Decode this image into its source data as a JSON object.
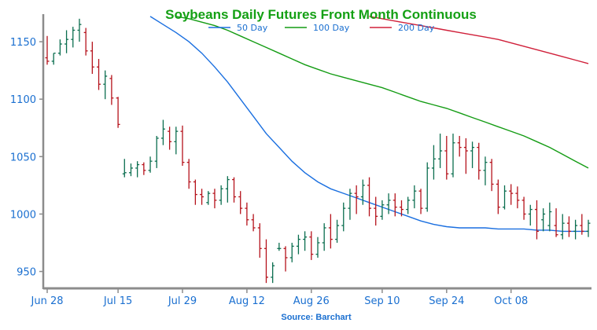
{
  "chart_data": {
    "type": "ohlc",
    "title": "Soybeans Daily Futures Front Month Continuous",
    "source": "Source: Barchart",
    "y_ticks": [
      950,
      1000,
      1050,
      1100,
      1150
    ],
    "ylim": [
      936,
      1174
    ],
    "x_tick_labels": [
      "Jun 28",
      "Jul 15",
      "Jul 29",
      "Aug 12",
      "Aug 26",
      "Sep 10",
      "Sep 24",
      "Oct 08"
    ],
    "x_tick_index": [
      0,
      11,
      21,
      31,
      41,
      52,
      62,
      72
    ],
    "x_count": 85,
    "up_color": "#0b6e4f",
    "down_color": "#b5121b",
    "bars": [
      [
        1136,
        1155,
        1130,
        1133
      ],
      [
        1133,
        1140,
        1130,
        1140
      ],
      [
        1140,
        1152,
        1138,
        1148
      ],
      [
        1148,
        1160,
        1140,
        1152
      ],
      [
        1152,
        1163,
        1145,
        1160
      ],
      [
        1160,
        1170,
        1150,
        1165
      ],
      [
        1158,
        1162,
        1138,
        1142
      ],
      [
        1142,
        1150,
        1122,
        1128
      ],
      [
        1128,
        1135,
        1108,
        1113
      ],
      [
        1113,
        1125,
        1100,
        1120
      ],
      [
        1118,
        1121,
        1095,
        1101
      ],
      [
        1101,
        1102,
        1075,
        1078
      ],
      [
        1035,
        1048,
        1032,
        1036
      ],
      [
        1036,
        1044,
        1033,
        1040
      ],
      [
        1040,
        1046,
        1032,
        1043
      ],
      [
        1043,
        1045,
        1034,
        1038
      ],
      [
        1038,
        1050,
        1036,
        1046
      ],
      [
        1046,
        1068,
        1040,
        1066
      ],
      [
        1066,
        1082,
        1060,
        1074
      ],
      [
        1072,
        1076,
        1056,
        1063
      ],
      [
        1063,
        1076,
        1052,
        1072
      ],
      [
        1072,
        1077,
        1042,
        1045
      ],
      [
        1045,
        1048,
        1022,
        1028
      ],
      [
        1028,
        1030,
        1008,
        1017
      ],
      [
        1017,
        1022,
        1008,
        1015
      ],
      [
        1010,
        1020,
        1008,
        1018
      ],
      [
        1018,
        1022,
        1005,
        1012
      ],
      [
        1012,
        1025,
        1008,
        1022
      ],
      [
        1022,
        1033,
        1010,
        1030
      ],
      [
        1030,
        1032,
        1010,
        1015
      ],
      [
        1015,
        1020,
        1000,
        1005
      ],
      [
        1005,
        1010,
        990,
        995
      ],
      [
        995,
        1000,
        985,
        988
      ],
      [
        988,
        992,
        962,
        970
      ],
      [
        970,
        978,
        940,
        945
      ],
      [
        945,
        958,
        940,
        955
      ],
      [
        970,
        975,
        968,
        970
      ],
      [
        970,
        972,
        950,
        962
      ],
      [
        962,
        975,
        958,
        972
      ],
      [
        972,
        982,
        965,
        978
      ],
      [
        978,
        985,
        968,
        980
      ],
      [
        980,
        985,
        960,
        965
      ],
      [
        965,
        980,
        962,
        975
      ],
      [
        975,
        992,
        968,
        988
      ],
      [
        988,
        1000,
        970,
        978
      ],
      [
        978,
        995,
        975,
        990
      ],
      [
        990,
        1010,
        985,
        1005
      ],
      [
        1005,
        1022,
        995,
        1018
      ],
      [
        1018,
        1025,
        1000,
        1015
      ],
      [
        1015,
        1030,
        1008,
        1025
      ],
      [
        1025,
        1032,
        998,
        1005
      ],
      [
        1005,
        1015,
        990,
        998
      ],
      [
        998,
        1012,
        995,
        1008
      ],
      [
        1008,
        1018,
        1000,
        1012
      ],
      [
        1012,
        1018,
        998,
        1006
      ],
      [
        1006,
        1012,
        998,
        1004
      ],
      [
        1004,
        1015,
        1000,
        1012
      ],
      [
        1012,
        1025,
        1005,
        1020
      ],
      [
        1020,
        1022,
        1000,
        1005
      ],
      [
        1005,
        1045,
        1002,
        1040
      ],
      [
        1040,
        1060,
        1030,
        1048
      ],
      [
        1048,
        1070,
        1040,
        1055
      ],
      [
        1055,
        1068,
        1030,
        1035
      ],
      [
        1035,
        1070,
        1032,
        1062
      ],
      [
        1062,
        1068,
        1050,
        1058
      ],
      [
        1058,
        1066,
        1035,
        1055
      ],
      [
        1055,
        1063,
        1040,
        1058
      ],
      [
        1058,
        1062,
        1030,
        1038
      ],
      [
        1038,
        1050,
        1025,
        1045
      ],
      [
        1045,
        1048,
        1020,
        1026
      ],
      [
        1026,
        1030,
        1000,
        1006
      ],
      [
        1006,
        1025,
        1004,
        1020
      ],
      [
        1020,
        1026,
        1008,
        1018
      ],
      [
        1018,
        1024,
        1005,
        1012
      ],
      [
        1012,
        1015,
        995,
        1000
      ],
      [
        1000,
        1008,
        990,
        1004
      ],
      [
        1004,
        1012,
        978,
        985
      ],
      [
        995,
        1005,
        985,
        1000
      ],
      [
        990,
        1010,
        985,
        1002
      ],
      [
        990,
        1005,
        980,
        982
      ],
      [
        982,
        1000,
        978,
        992
      ],
      [
        992,
        998,
        980,
        985
      ],
      [
        985,
        995,
        978,
        990
      ],
      [
        990,
        1000,
        982,
        985
      ],
      [
        985,
        995,
        980,
        992
      ]
    ],
    "series": [
      {
        "name": "50 Day",
        "color": "#1a6fe0",
        "points": [
          [
            16,
            1172
          ],
          [
            18,
            1165
          ],
          [
            20,
            1158
          ],
          [
            22,
            1150
          ],
          [
            24,
            1140
          ],
          [
            26,
            1128
          ],
          [
            28,
            1115
          ],
          [
            30,
            1100
          ],
          [
            32,
            1085
          ],
          [
            34,
            1070
          ],
          [
            36,
            1058
          ],
          [
            38,
            1046
          ],
          [
            40,
            1036
          ],
          [
            42,
            1028
          ],
          [
            44,
            1022
          ],
          [
            46,
            1018
          ],
          [
            48,
            1014
          ],
          [
            50,
            1010
          ],
          [
            52,
            1006
          ],
          [
            54,
            1002
          ],
          [
            56,
            998
          ],
          [
            58,
            994
          ],
          [
            60,
            991
          ],
          [
            62,
            989
          ],
          [
            64,
            988
          ],
          [
            66,
            988
          ],
          [
            68,
            988
          ],
          [
            70,
            987
          ],
          [
            72,
            987
          ],
          [
            74,
            987
          ],
          [
            76,
            986
          ],
          [
            78,
            986
          ],
          [
            80,
            985
          ],
          [
            82,
            985
          ],
          [
            84,
            985
          ]
        ]
      },
      {
        "name": "100 Day",
        "color": "#149c14",
        "points": [
          [
            20,
            1172
          ],
          [
            22,
            1170
          ],
          [
            24,
            1167
          ],
          [
            26,
            1164
          ],
          [
            28,
            1160
          ],
          [
            30,
            1155
          ],
          [
            32,
            1150
          ],
          [
            34,
            1145
          ],
          [
            36,
            1140
          ],
          [
            38,
            1135
          ],
          [
            40,
            1130
          ],
          [
            42,
            1126
          ],
          [
            44,
            1122
          ],
          [
            46,
            1119
          ],
          [
            48,
            1116
          ],
          [
            50,
            1113
          ],
          [
            52,
            1110
          ],
          [
            54,
            1106
          ],
          [
            56,
            1102
          ],
          [
            58,
            1098
          ],
          [
            60,
            1095
          ],
          [
            62,
            1092
          ],
          [
            64,
            1088
          ],
          [
            66,
            1084
          ],
          [
            68,
            1080
          ],
          [
            70,
            1076
          ],
          [
            72,
            1072
          ],
          [
            74,
            1068
          ],
          [
            76,
            1063
          ],
          [
            78,
            1058
          ],
          [
            80,
            1052
          ],
          [
            82,
            1046
          ],
          [
            84,
            1040
          ]
        ]
      },
      {
        "name": "200 Day",
        "color": "#d0203a",
        "points": [
          [
            50,
            1172
          ],
          [
            52,
            1170
          ],
          [
            54,
            1168
          ],
          [
            56,
            1166
          ],
          [
            58,
            1164
          ],
          [
            60,
            1162
          ],
          [
            62,
            1160
          ],
          [
            64,
            1158
          ],
          [
            66,
            1156
          ],
          [
            68,
            1154
          ],
          [
            70,
            1152
          ],
          [
            72,
            1149
          ],
          [
            74,
            1146
          ],
          [
            76,
            1143
          ],
          [
            78,
            1140
          ],
          [
            80,
            1137
          ],
          [
            82,
            1134
          ],
          [
            84,
            1131
          ]
        ]
      }
    ]
  }
}
